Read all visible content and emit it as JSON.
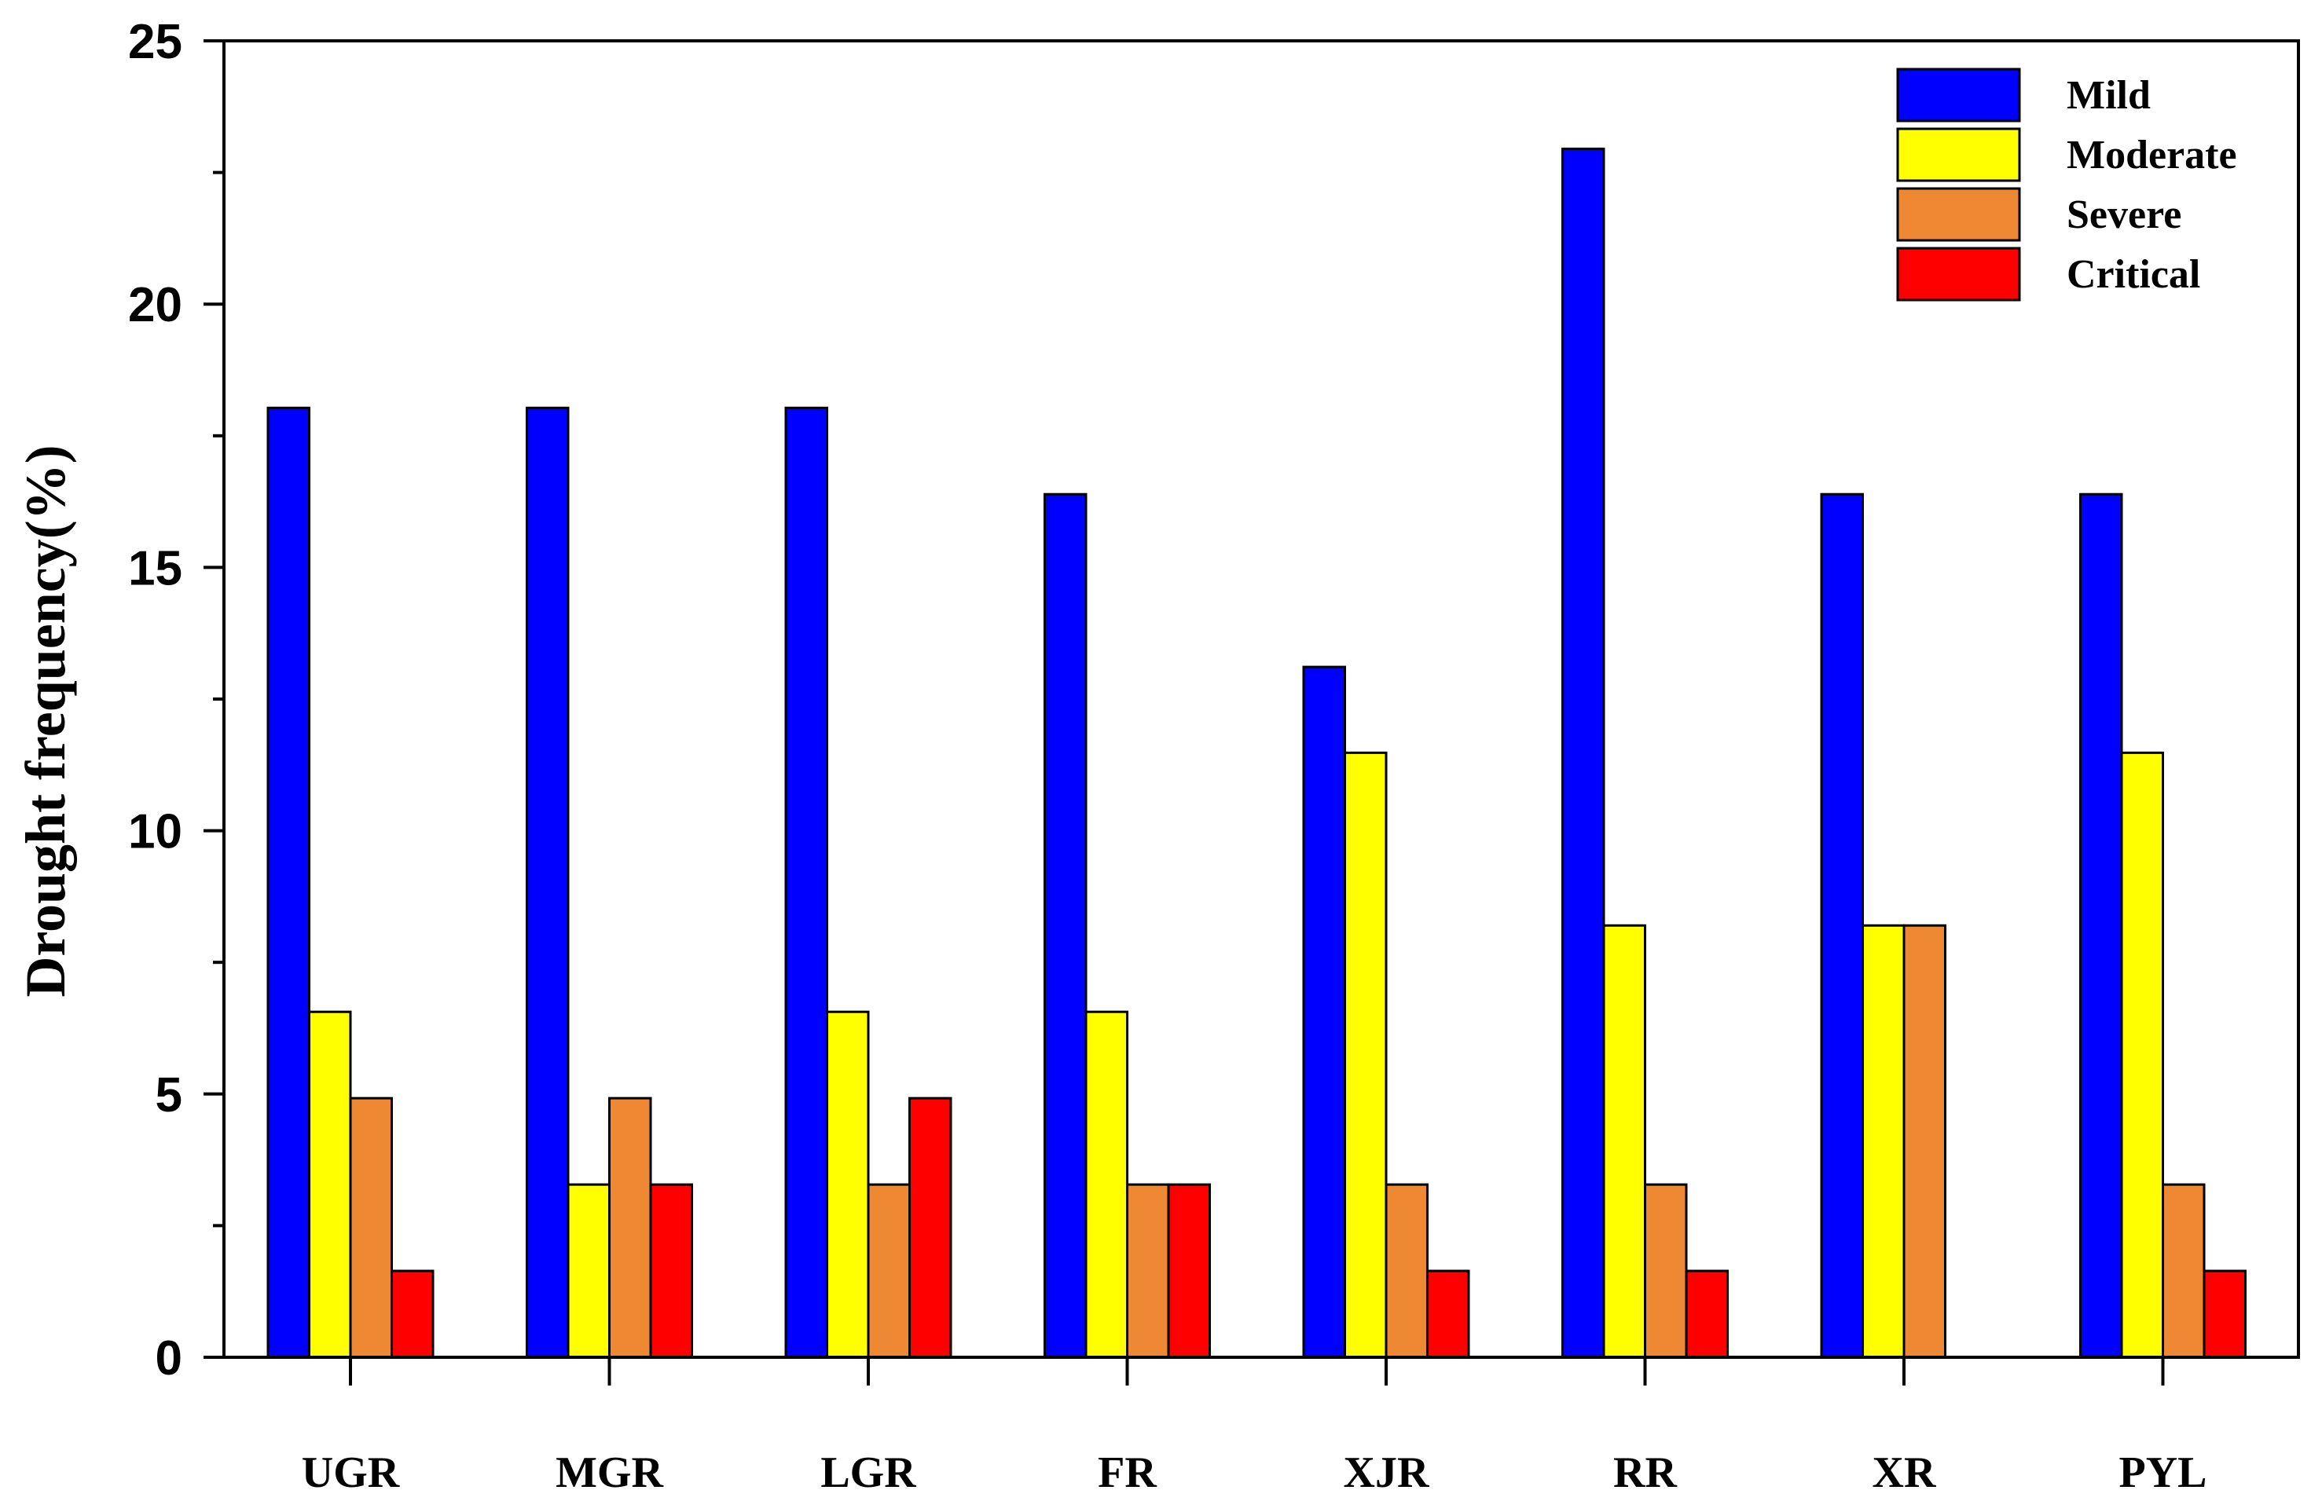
{
  "chart_data": {
    "type": "bar",
    "title": "",
    "xlabel": "",
    "ylabel": "Drought frequency(%)",
    "ylim": [
      0,
      25
    ],
    "yticks": [
      0,
      5,
      10,
      15,
      20,
      25
    ],
    "categories": [
      "UGR",
      "MGR",
      "LGR",
      "FR",
      "XJR",
      "RR",
      "XR",
      "PYL"
    ],
    "series": [
      {
        "name": "Mild",
        "color": "#0000ff",
        "values": [
          18.03,
          18.03,
          18.03,
          16.39,
          13.11,
          22.95,
          16.39,
          16.39
        ]
      },
      {
        "name": "Moderate",
        "color": "#ffff00",
        "values": [
          6.56,
          3.28,
          6.56,
          6.56,
          11.48,
          8.2,
          8.2,
          11.48
        ]
      },
      {
        "name": "Severe",
        "color": "#ee8833",
        "values": [
          4.92,
          4.92,
          3.28,
          3.28,
          3.28,
          3.28,
          8.2,
          3.28
        ]
      },
      {
        "name": "Critical",
        "color": "#ff0000",
        "values": [
          1.64,
          3.28,
          4.92,
          3.28,
          1.64,
          1.64,
          0,
          1.64
        ]
      }
    ],
    "legend_position": "top-right",
    "grid": false
  }
}
